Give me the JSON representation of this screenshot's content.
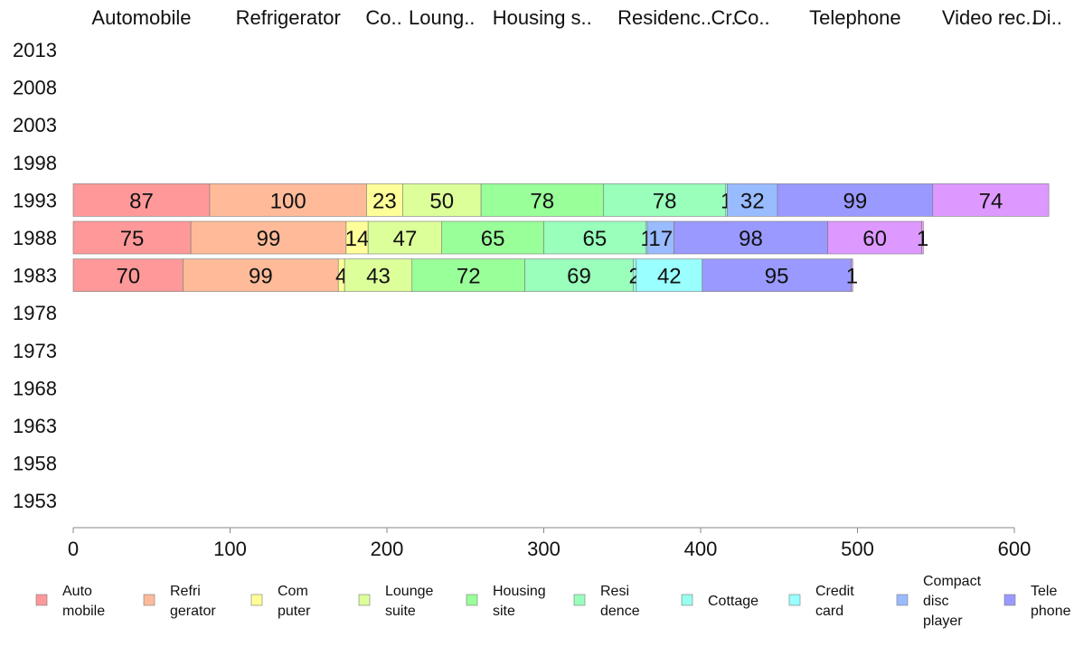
{
  "chart_data": {
    "type": "bar",
    "orientation": "horizontal",
    "stacked": true,
    "categories": [
      "2013",
      "2008",
      "2003",
      "1998",
      "1993",
      "1988",
      "1983",
      "1978",
      "1973",
      "1968",
      "1963",
      "1958",
      "1953"
    ],
    "xlim": [
      0,
      600
    ],
    "xticks": [
      0,
      100,
      200,
      300,
      400,
      500,
      600
    ],
    "grid": false,
    "legend_position": "bottom",
    "column_headers": [
      {
        "label": "Automobile",
        "center": 43.5
      },
      {
        "label": "Refrigerator",
        "center": 137
      },
      {
        "label": "Co..",
        "center": 198
      },
      {
        "label": "Loung..",
        "center": 235
      },
      {
        "label": "Housing s..",
        "center": 299
      },
      {
        "label": "Residenc..",
        "center": 377
      },
      {
        "label": "Cr..",
        "center": 416.5
      },
      {
        "label": "Co..",
        "center": 432.5
      },
      {
        "label": "Telephone",
        "center": 498.5
      },
      {
        "label": "Video rec..",
        "center": 584
      },
      {
        "label": "Di..",
        "center": 621
      }
    ],
    "series": [
      {
        "name": "Automobile",
        "color": "#ff9999",
        "values": [
          null,
          null,
          null,
          null,
          87,
          75,
          70,
          null,
          null,
          null,
          null,
          null,
          null
        ]
      },
      {
        "name": "Refrigerator",
        "color": "#ffbb99",
        "values": [
          null,
          null,
          null,
          null,
          100,
          99,
          99,
          null,
          null,
          null,
          null,
          null,
          null
        ]
      },
      {
        "name": "Computer",
        "color": "#ffff99",
        "values": [
          null,
          null,
          null,
          null,
          23,
          14,
          4,
          null,
          null,
          null,
          null,
          null,
          null
        ]
      },
      {
        "name": "Lounge suite",
        "color": "#ddff99",
        "values": [
          null,
          null,
          null,
          null,
          50,
          47,
          43,
          null,
          null,
          null,
          null,
          null,
          null
        ]
      },
      {
        "name": "Housing site",
        "color": "#99ff99",
        "values": [
          null,
          null,
          null,
          null,
          78,
          65,
          72,
          null,
          null,
          null,
          null,
          null,
          null
        ]
      },
      {
        "name": "Residence",
        "color": "#99ffbb",
        "values": [
          null,
          null,
          null,
          null,
          78,
          65,
          69,
          null,
          null,
          null,
          null,
          null,
          null
        ]
      },
      {
        "name": "Cottage",
        "color": "#99ffee",
        "values": [
          null,
          null,
          null,
          null,
          1,
          1,
          2,
          null,
          null,
          null,
          null,
          null,
          null
        ]
      },
      {
        "name": "Credit card",
        "color": "#99ffff",
        "values": [
          null,
          null,
          null,
          null,
          null,
          null,
          42,
          null,
          null,
          null,
          null,
          null,
          null
        ]
      },
      {
        "name": "Compact disc player",
        "color": "#99bbff",
        "values": [
          null,
          null,
          null,
          null,
          32,
          17,
          null,
          null,
          null,
          null,
          null,
          null,
          null
        ]
      },
      {
        "name": "Telephone",
        "color": "#9999ff",
        "values": [
          null,
          null,
          null,
          null,
          99,
          98,
          95,
          null,
          null,
          null,
          null,
          null,
          null
        ]
      },
      {
        "name": "Video recorder",
        "color": "#dd99ff",
        "values": [
          null,
          null,
          null,
          null,
          74,
          60,
          1,
          null,
          null,
          null,
          null,
          null,
          null
        ]
      },
      {
        "name": "Digital",
        "color": "#ff99ff",
        "values": [
          null,
          null,
          null,
          null,
          null,
          1,
          null,
          null,
          null,
          null,
          null,
          null,
          null
        ]
      }
    ],
    "legend": [
      {
        "lines": [
          "Auto",
          "mobile"
        ],
        "color": "#ff9999"
      },
      {
        "lines": [
          "Refri",
          "gerator"
        ],
        "color": "#ffbb99"
      },
      {
        "lines": [
          "Com",
          "puter"
        ],
        "color": "#ffff99"
      },
      {
        "lines": [
          "Lounge",
          "suite"
        ],
        "color": "#ddff99"
      },
      {
        "lines": [
          "Housing",
          "site"
        ],
        "color": "#99ff99"
      },
      {
        "lines": [
          "Resi",
          "dence"
        ],
        "color": "#99ffbb"
      },
      {
        "lines": [
          "Cottage"
        ],
        "color": "#99ffee"
      },
      {
        "lines": [
          "Credit",
          "card"
        ],
        "color": "#99ffff"
      },
      {
        "lines": [
          "Compact",
          "disc",
          "player"
        ],
        "color": "#99bbff"
      },
      {
        "lines": [
          "Tele",
          "phone"
        ],
        "color": "#9999ff"
      }
    ]
  }
}
